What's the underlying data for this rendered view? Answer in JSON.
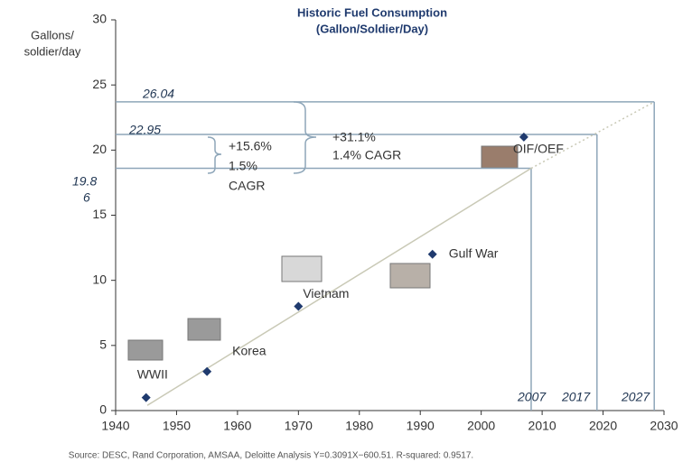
{
  "chart_data": {
    "type": "scatter",
    "title": [
      "Historic Fuel Consumption",
      "(Gallon/Soldier/Day)"
    ],
    "y_label": [
      "Gallons/",
      "soldier/day"
    ],
    "xlim": [
      1940,
      2030
    ],
    "ylim": [
      0,
      30
    ],
    "xticks": [
      1940,
      1950,
      1960,
      1970,
      1980,
      1990,
      2000,
      2010,
      2020,
      2030
    ],
    "yticks": [
      0,
      5,
      10,
      15,
      20,
      25,
      30
    ],
    "grid": false,
    "series": [
      {
        "x": [
          1945,
          1955,
          1970,
          1992,
          2007
        ],
        "values": [
          1,
          3,
          8,
          12,
          21
        ],
        "color": "#1f3a6e"
      }
    ],
    "point_labels": [
      "WWII",
      "Korea",
      "Vietnam",
      "Gulf War",
      "OIF/OEF"
    ],
    "trend": {
      "x": [
        1945.2,
        2008.2,
        2028.4
      ],
      "values": [
        0.4,
        18.6,
        23.7
      ],
      "color": "#c9c9b6"
    },
    "reference_lines": {
      "x": [
        2008.2,
        2019,
        2028.4
      ],
      "y": [
        18.6,
        21.2,
        23.7
      ],
      "color": "#8ea6b9"
    },
    "value_annotations": [
      [
        "26.04"
      ],
      [
        "22.95"
      ],
      [
        "19.8",
        "6"
      ]
    ],
    "year_annotations": [
      "2007",
      "2017",
      "2027"
    ],
    "brace_texts": [
      [
        "+15.6%",
        "1.5%",
        "CAGR"
      ],
      [
        "+31.1%",
        "1.4% CAGR"
      ]
    ],
    "source": "Source: DESC, Rand Corporation, AMSAA, Deloitte Analysis Y=0.3091X−600.51. R-squared: 0.9517."
  }
}
